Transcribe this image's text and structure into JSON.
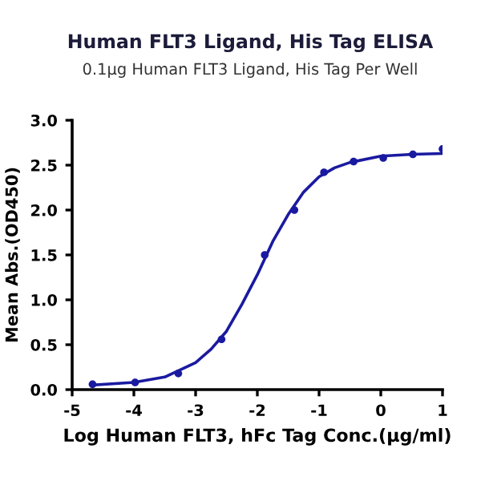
{
  "chart_data": {
    "type": "scatter",
    "title": "Human FLT3 Ligand, His Tag ELISA",
    "subtitle": "0.1µg Human FLT3 Ligand, His Tag Per Well",
    "xlabel": "Log Human FLT3, hFc Tag Conc.(µg/ml)",
    "ylabel": "Mean Abs.(OD450)",
    "series": [
      {
        "color": "#1a1aa0",
        "marker": "circle",
        "x": [
          -4.67,
          -3.98,
          -3.28,
          -2.58,
          -1.88,
          -1.4,
          -0.92,
          -0.44,
          0.04,
          0.52,
          1.0
        ],
        "values": [
          0.06,
          0.08,
          0.18,
          0.56,
          1.5,
          2.0,
          2.42,
          2.54,
          2.58,
          2.62,
          2.68
        ]
      },
      {
        "type": "line",
        "color": "#1a1aa0",
        "x": [
          -4.67,
          -4.0,
          -3.5,
          -3.0,
          -2.75,
          -2.5,
          -2.25,
          -2.0,
          -1.75,
          -1.5,
          -1.25,
          -1.0,
          -0.75,
          -0.5,
          0.0,
          0.5,
          1.0
        ],
        "values": [
          0.05,
          0.08,
          0.14,
          0.3,
          0.45,
          0.65,
          0.95,
          1.28,
          1.65,
          1.95,
          2.2,
          2.37,
          2.47,
          2.53,
          2.6,
          2.62,
          2.63
        ]
      }
    ],
    "xlim": [
      -5,
      1
    ],
    "xticks": [
      -5,
      -4,
      -3,
      -2,
      -1,
      0,
      1
    ],
    "ylim": [
      0,
      3.0
    ],
    "yticks": [
      {
        "value": 0,
        "label": "0.0"
      },
      {
        "value": 0.5,
        "label": "0.5"
      },
      {
        "value": 1.0,
        "label": "1.0"
      },
      {
        "value": 1.5,
        "label": "1.5"
      },
      {
        "value": 2.0,
        "label": "2.0"
      },
      {
        "value": 2.5,
        "label": "2.5"
      },
      {
        "value": 3.0,
        "label": "3.0"
      }
    ],
    "grid": false
  }
}
